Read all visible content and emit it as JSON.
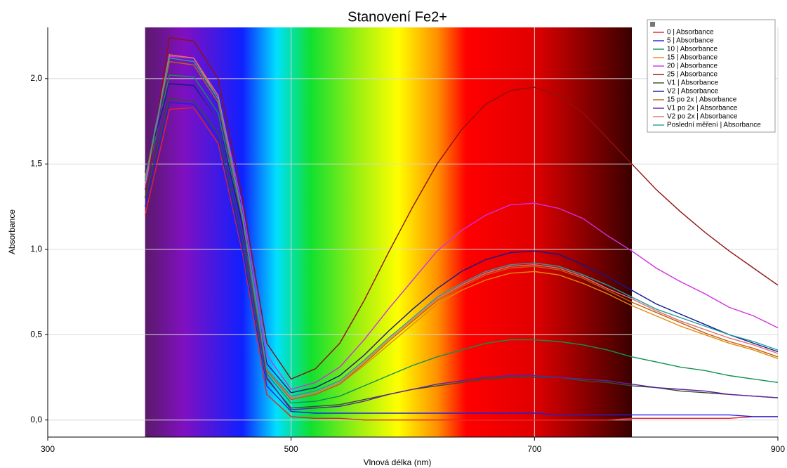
{
  "chart_data": {
    "type": "line",
    "title": "Stanovení Fe2+",
    "x_label": "Vlnová délka (nm)",
    "y_label": "Absorbance",
    "xlim": [
      300,
      900
    ],
    "ylim": [
      -0.1,
      2.3
    ],
    "xticks": [
      300,
      500,
      700,
      900
    ],
    "yticks": [
      {
        "value": 0,
        "label": "0,0"
      },
      {
        "value": 0.5,
        "label": "0,5"
      },
      {
        "value": 1,
        "label": "1,0"
      },
      {
        "value": 1.5,
        "label": "1,5"
      },
      {
        "value": 2,
        "label": "2,0"
      }
    ],
    "grid": true,
    "legend": "top-right",
    "spectrum_band": [
      380,
      780
    ],
    "x": [
      380,
      400,
      420,
      440,
      460,
      480,
      500,
      520,
      540,
      560,
      580,
      600,
      620,
      640,
      660,
      680,
      700,
      720,
      740,
      760,
      780,
      800,
      820,
      840,
      860,
      880,
      900
    ],
    "series": [
      {
        "name": "0 | Absorbance",
        "color": "#e8202a",
        "values": [
          1.2,
          1.82,
          1.83,
          1.62,
          0.98,
          0.15,
          0.02,
          0.01,
          0.01,
          0,
          0,
          0,
          0,
          0,
          0,
          0,
          0,
          0,
          0,
          0,
          0.01,
          0.01,
          0.01,
          0.01,
          0.01,
          0.02,
          0.02
        ]
      },
      {
        "name": "5 | Absorbance",
        "color": "#2020e0",
        "values": [
          1.25,
          1.86,
          1.85,
          1.65,
          1.0,
          0.2,
          0.05,
          0.04,
          0.04,
          0.04,
          0.04,
          0.04,
          0.04,
          0.04,
          0.04,
          0.04,
          0.04,
          0.03,
          0.03,
          0.03,
          0.03,
          0.03,
          0.03,
          0.03,
          0.03,
          0.02,
          0.02
        ]
      },
      {
        "name": "10 | Absorbance",
        "color": "#109050",
        "values": [
          1.38,
          2.02,
          2.01,
          1.8,
          1.15,
          0.27,
          0.1,
          0.11,
          0.14,
          0.2,
          0.26,
          0.32,
          0.37,
          0.41,
          0.45,
          0.47,
          0.47,
          0.46,
          0.44,
          0.41,
          0.37,
          0.34,
          0.31,
          0.29,
          0.26,
          0.24,
          0.22
        ]
      },
      {
        "name": "15 | Absorbance",
        "color": "#e08a10",
        "values": [
          1.4,
          2.14,
          2.12,
          1.88,
          1.2,
          0.29,
          0.12,
          0.15,
          0.21,
          0.32,
          0.44,
          0.56,
          0.68,
          0.76,
          0.82,
          0.86,
          0.87,
          0.85,
          0.8,
          0.74,
          0.67,
          0.61,
          0.55,
          0.5,
          0.45,
          0.41,
          0.36
        ]
      },
      {
        "name": "20 | Absorbance",
        "color": "#d030e0",
        "values": [
          1.35,
          2.13,
          2.12,
          1.9,
          1.25,
          0.38,
          0.18,
          0.22,
          0.31,
          0.47,
          0.65,
          0.82,
          0.99,
          1.11,
          1.2,
          1.26,
          1.27,
          1.24,
          1.18,
          1.08,
          0.99,
          0.89,
          0.81,
          0.74,
          0.66,
          0.61,
          0.54
        ]
      },
      {
        "name": "25 | Absorbance",
        "color": "#901010",
        "values": [
          1.3,
          2.24,
          2.22,
          2.0,
          1.3,
          0.45,
          0.24,
          0.3,
          0.45,
          0.7,
          0.98,
          1.25,
          1.5,
          1.7,
          1.85,
          1.93,
          1.95,
          1.9,
          1.8,
          1.65,
          1.5,
          1.35,
          1.22,
          1.1,
          0.99,
          0.89,
          0.79
        ]
      },
      {
        "name": "V1 | Absorbance",
        "color": "#305030",
        "values": [
          1.3,
          1.88,
          1.87,
          1.68,
          1.05,
          0.24,
          0.07,
          0.08,
          0.09,
          0.12,
          0.15,
          0.18,
          0.2,
          0.22,
          0.24,
          0.25,
          0.25,
          0.25,
          0.23,
          0.22,
          0.2,
          0.19,
          0.17,
          0.16,
          0.15,
          0.14,
          0.13
        ]
      },
      {
        "name": "V2 | Absorbance",
        "color": "#101890",
        "values": [
          1.45,
          1.97,
          1.96,
          1.75,
          1.15,
          0.33,
          0.16,
          0.19,
          0.26,
          0.38,
          0.52,
          0.65,
          0.77,
          0.87,
          0.94,
          0.98,
          0.99,
          0.97,
          0.91,
          0.84,
          0.76,
          0.68,
          0.62,
          0.56,
          0.5,
          0.45,
          0.4
        ]
      },
      {
        "name": "15 po 2x | Absorbance",
        "color": "#c06010",
        "values": [
          1.42,
          2.1,
          2.08,
          1.86,
          1.18,
          0.29,
          0.12,
          0.15,
          0.21,
          0.33,
          0.46,
          0.58,
          0.7,
          0.78,
          0.85,
          0.89,
          0.9,
          0.88,
          0.83,
          0.76,
          0.69,
          0.63,
          0.57,
          0.51,
          0.46,
          0.42,
          0.37
        ]
      },
      {
        "name": "V1 po 2x | Absorbance",
        "color": "#6020a0",
        "values": [
          1.35,
          1.96,
          1.95,
          1.75,
          1.1,
          0.25,
          0.06,
          0.07,
          0.08,
          0.11,
          0.15,
          0.18,
          0.21,
          0.23,
          0.25,
          0.26,
          0.26,
          0.25,
          0.24,
          0.23,
          0.21,
          0.19,
          0.18,
          0.17,
          0.15,
          0.14,
          0.13
        ]
      },
      {
        "name": "V2 po 2x | Absorbance",
        "color": "#e07070",
        "values": [
          1.38,
          2.14,
          2.12,
          1.9,
          1.2,
          0.3,
          0.13,
          0.16,
          0.22,
          0.34,
          0.47,
          0.59,
          0.71,
          0.79,
          0.86,
          0.9,
          0.91,
          0.89,
          0.84,
          0.77,
          0.71,
          0.64,
          0.58,
          0.53,
          0.48,
          0.44,
          0.39
        ]
      },
      {
        "name": "Poslední měření | Absorbance",
        "color": "#20a0a0",
        "values": [
          1.4,
          2.12,
          2.1,
          1.88,
          1.2,
          0.3,
          0.14,
          0.17,
          0.23,
          0.35,
          0.48,
          0.6,
          0.72,
          0.8,
          0.87,
          0.91,
          0.92,
          0.9,
          0.85,
          0.79,
          0.72,
          0.65,
          0.6,
          0.55,
          0.5,
          0.46,
          0.41
        ]
      }
    ]
  }
}
